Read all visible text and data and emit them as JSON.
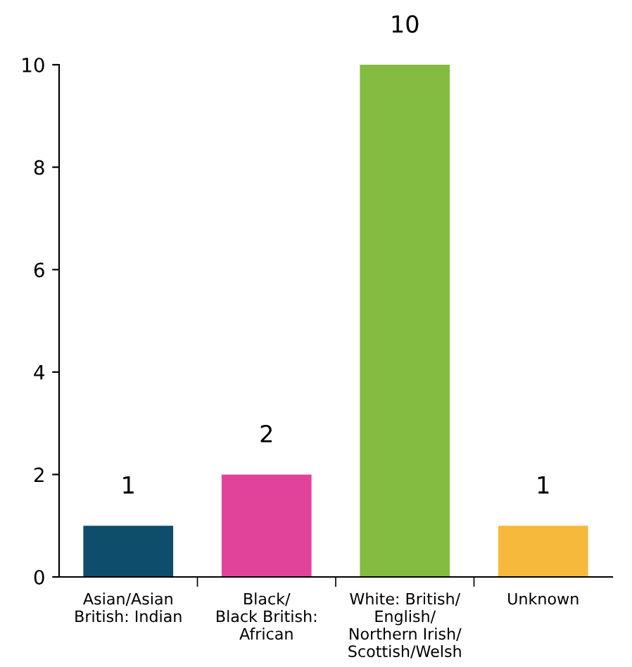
{
  "chart_data": {
    "type": "bar",
    "categories": [
      "Asian/Asian\nBritish: Indian",
      "Black/\nBlack British:\nAfrican",
      "White: British/\nEnglish/\nNorthern Irish/\nScottish/Welsh",
      "Unknown"
    ],
    "values": [
      1,
      2,
      10,
      1
    ],
    "colors": [
      "#0e4d6b",
      "#e2439a",
      "#84bc41",
      "#f7b93b"
    ],
    "ylim": [
      0,
      10
    ],
    "yticks": [
      0,
      2,
      4,
      6,
      8,
      10
    ],
    "grid": false,
    "data_labels": true
  }
}
